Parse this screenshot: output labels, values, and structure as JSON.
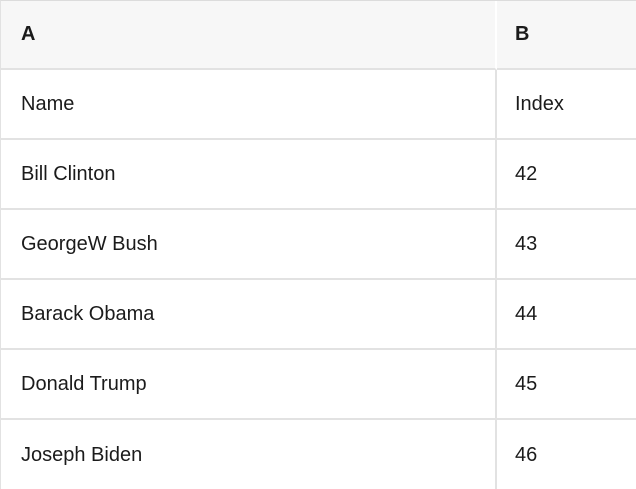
{
  "table": {
    "header": {
      "a": "A",
      "b": "B"
    },
    "rows": [
      {
        "a": "Name",
        "b": "Index"
      },
      {
        "a": "Bill Clinton",
        "b": "42"
      },
      {
        "a": "GeorgeW Bush",
        "b": "43"
      },
      {
        "a": "Barack Obama",
        "b": "44"
      },
      {
        "a": "Donald Trump",
        "b": "45"
      },
      {
        "a": "Joseph Biden",
        "b": "46"
      }
    ],
    "colors": {
      "header_bg": "#f7f7f7",
      "border": "#e2e2e2",
      "border_top": "#dcdcdc",
      "text": "#1b1b1b",
      "cell_bg": "#ffffff"
    }
  }
}
